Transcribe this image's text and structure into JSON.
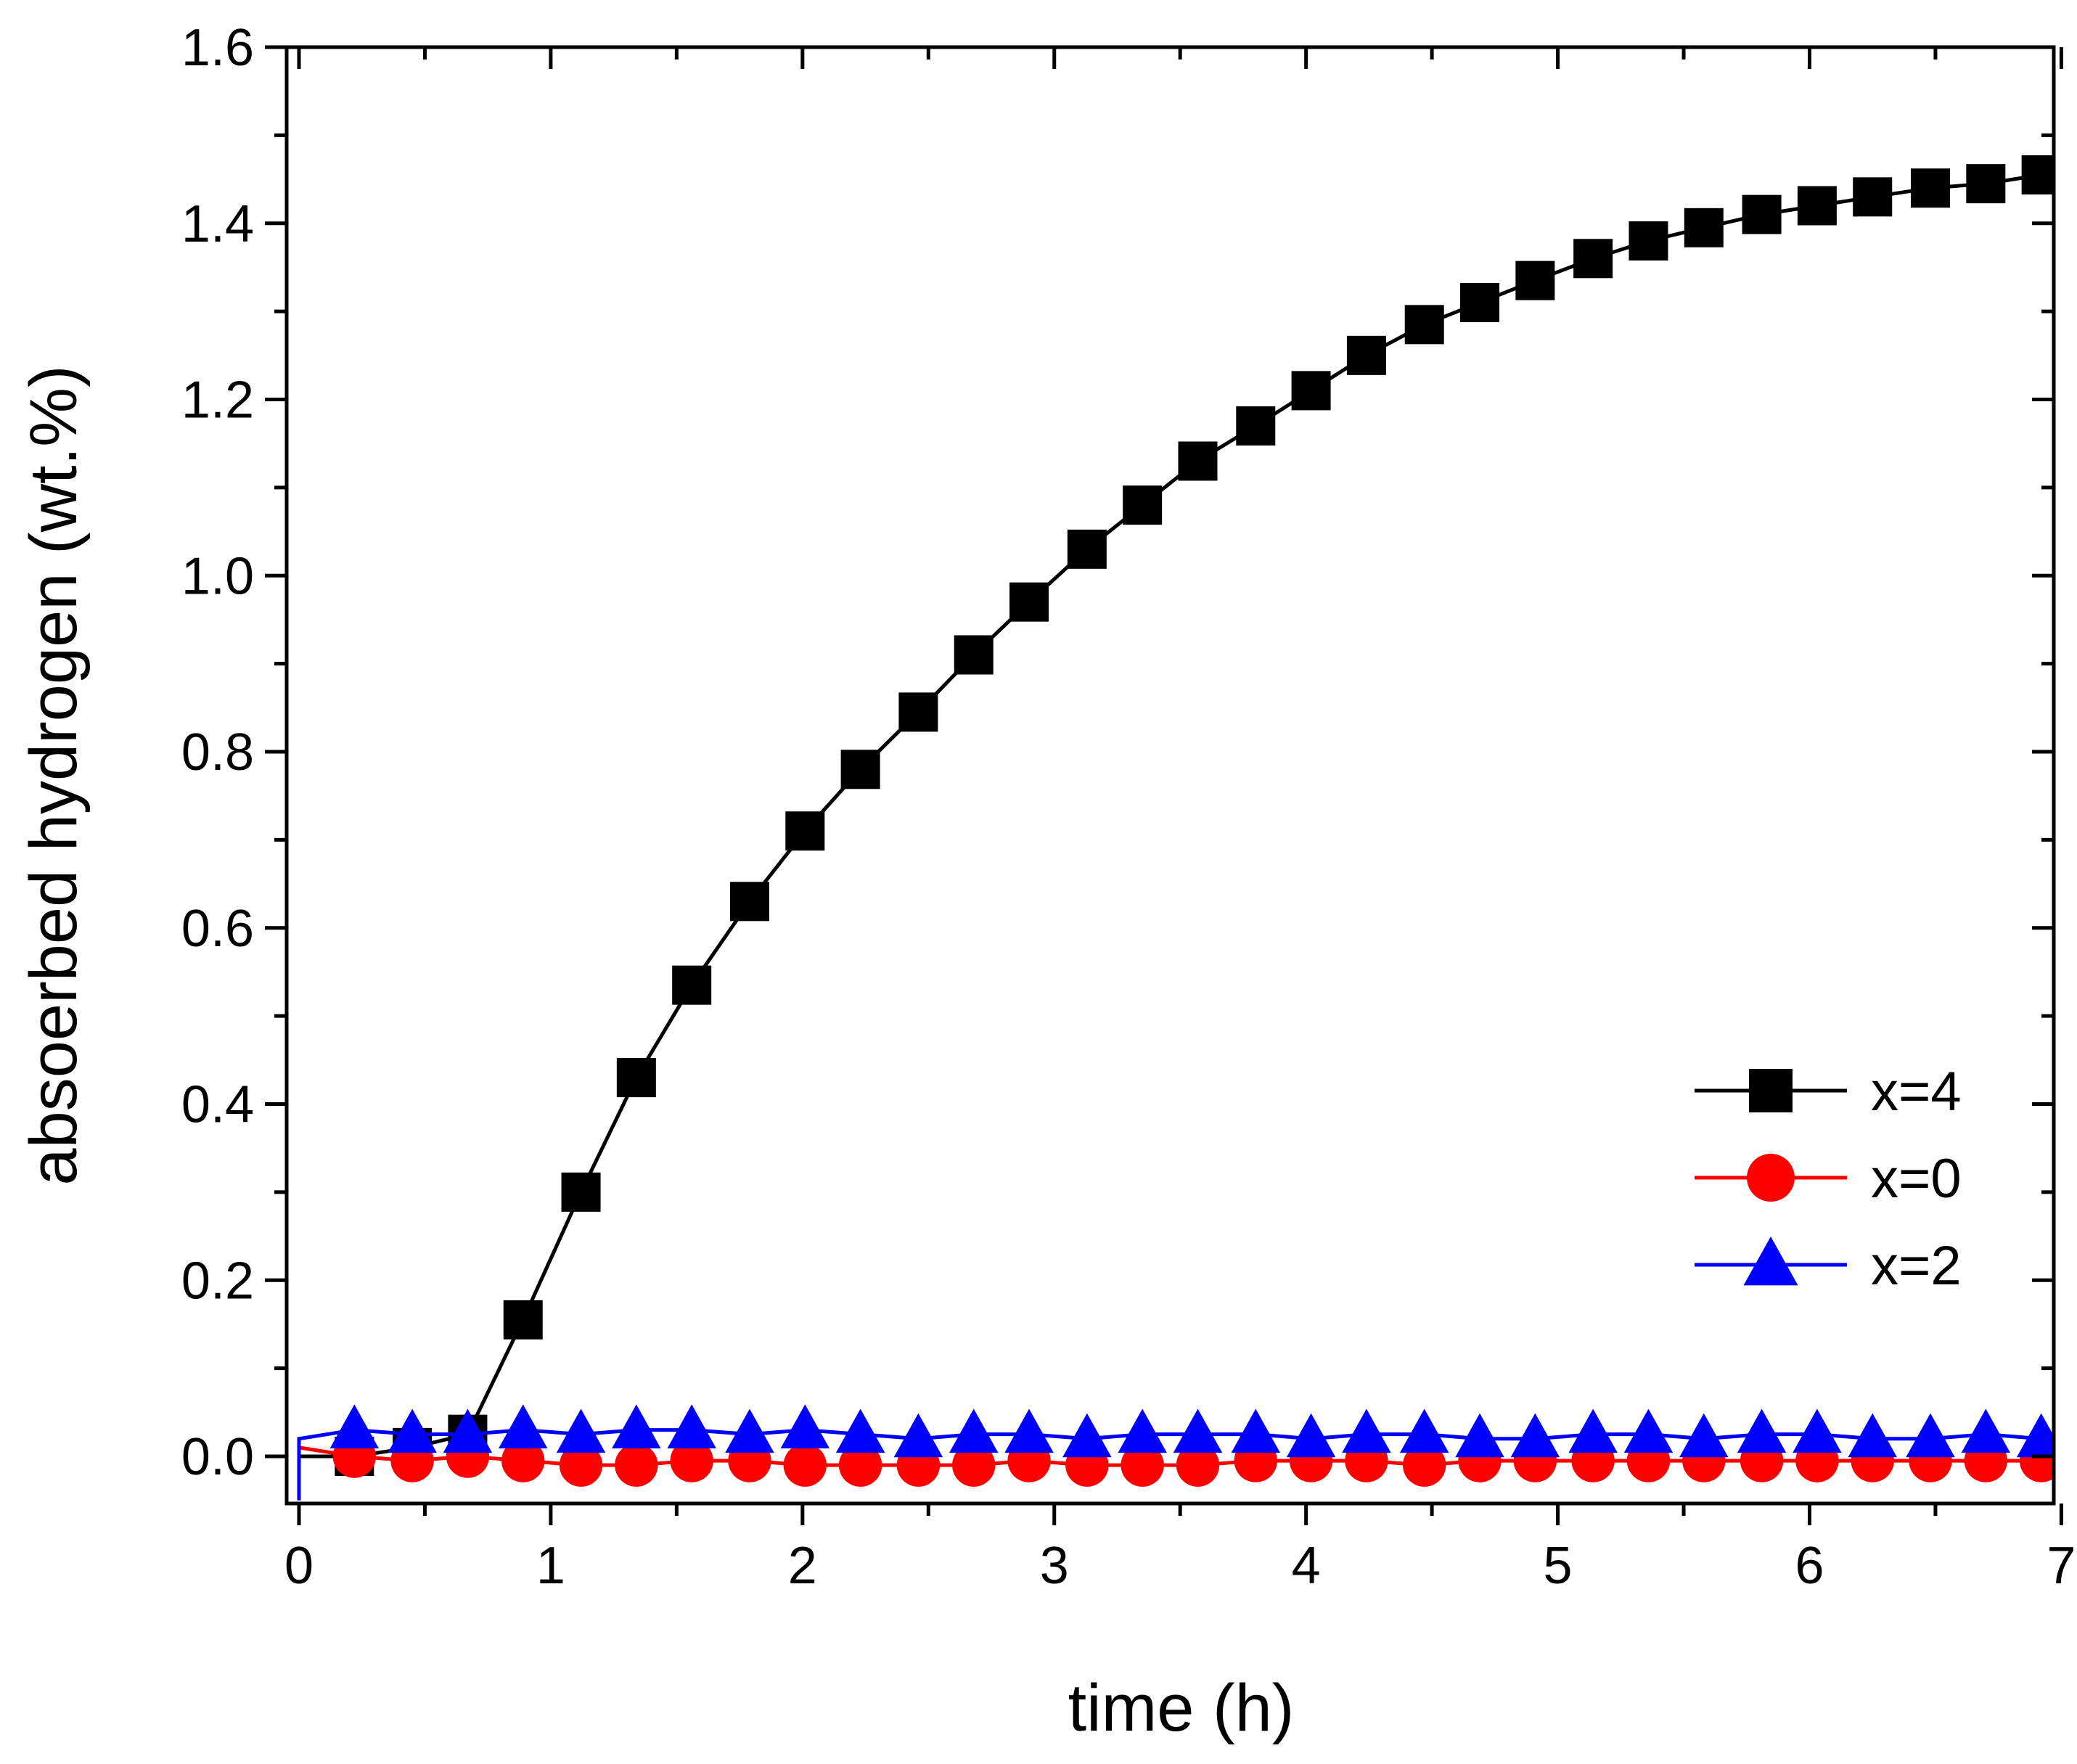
{
  "chart_data": {
    "type": "line",
    "title": "",
    "xlabel": "time (h)",
    "ylabel": "absoerbed hydrogen (wt.%)",
    "xlim": [
      0,
      7
    ],
    "ylim": [
      0,
      1.6
    ],
    "xticks": [
      "0",
      "1",
      "2",
      "3",
      "4",
      "5",
      "6",
      "7"
    ],
    "yticks": [
      "0.0",
      "0.2",
      "0.4",
      "0.6",
      "0.8",
      "1.0",
      "1.2",
      "1.4",
      "1.6"
    ],
    "grid": false,
    "legend_position": "bottom-right",
    "series": [
      {
        "name": "x=4",
        "color": "#000000",
        "marker": "square",
        "x": [
          0.22,
          0.45,
          0.67,
          0.89,
          1.12,
          1.34,
          1.56,
          1.79,
          2.01,
          2.23,
          2.46,
          2.68,
          2.9,
          3.13,
          3.35,
          3.57,
          3.8,
          4.02,
          4.24,
          4.47,
          4.69,
          4.91,
          5.14,
          5.36,
          5.58,
          5.81,
          6.03,
          6.25,
          6.48,
          6.7,
          6.92
        ],
        "values": [
          0.0,
          0.01,
          0.025,
          0.155,
          0.3,
          0.43,
          0.535,
          0.63,
          0.71,
          0.78,
          0.845,
          0.91,
          0.97,
          1.03,
          1.08,
          1.13,
          1.17,
          1.21,
          1.25,
          1.285,
          1.31,
          1.335,
          1.36,
          1.38,
          1.395,
          1.41,
          1.42,
          1.43,
          1.44,
          1.445,
          1.455
        ]
      },
      {
        "name": "x=0",
        "color": "#ff0000",
        "marker": "circle",
        "x": [
          0.22,
          0.45,
          0.67,
          0.89,
          1.12,
          1.34,
          1.56,
          1.79,
          2.01,
          2.23,
          2.46,
          2.68,
          2.9,
          3.13,
          3.35,
          3.57,
          3.8,
          4.02,
          4.24,
          4.47,
          4.69,
          4.91,
          5.14,
          5.36,
          5.58,
          5.81,
          6.03,
          6.25,
          6.48,
          6.7,
          6.92
        ],
        "values": [
          0.0,
          -0.005,
          0.0,
          -0.005,
          -0.01,
          -0.01,
          -0.005,
          -0.005,
          -0.01,
          -0.01,
          -0.01,
          -0.01,
          -0.005,
          -0.01,
          -0.01,
          -0.01,
          -0.005,
          -0.005,
          -0.005,
          -0.01,
          -0.005,
          -0.005,
          -0.005,
          -0.005,
          -0.005,
          -0.005,
          -0.005,
          -0.005,
          -0.005,
          -0.005,
          -0.005
        ]
      },
      {
        "name": "x=2",
        "color": "#0000ff",
        "marker": "triangle",
        "x": [
          0.22,
          0.45,
          0.67,
          0.89,
          1.12,
          1.34,
          1.56,
          1.79,
          2.01,
          2.23,
          2.46,
          2.68,
          2.9,
          3.13,
          3.35,
          3.57,
          3.8,
          4.02,
          4.24,
          4.47,
          4.69,
          4.91,
          5.14,
          5.36,
          5.58,
          5.81,
          6.03,
          6.25,
          6.48,
          6.7,
          6.92
        ],
        "values": [
          0.03,
          0.025,
          0.025,
          0.03,
          0.025,
          0.03,
          0.03,
          0.025,
          0.03,
          0.025,
          0.02,
          0.025,
          0.025,
          0.02,
          0.025,
          0.025,
          0.025,
          0.02,
          0.025,
          0.025,
          0.02,
          0.02,
          0.025,
          0.025,
          0.02,
          0.025,
          0.025,
          0.02,
          0.02,
          0.025,
          0.02
        ]
      }
    ]
  }
}
